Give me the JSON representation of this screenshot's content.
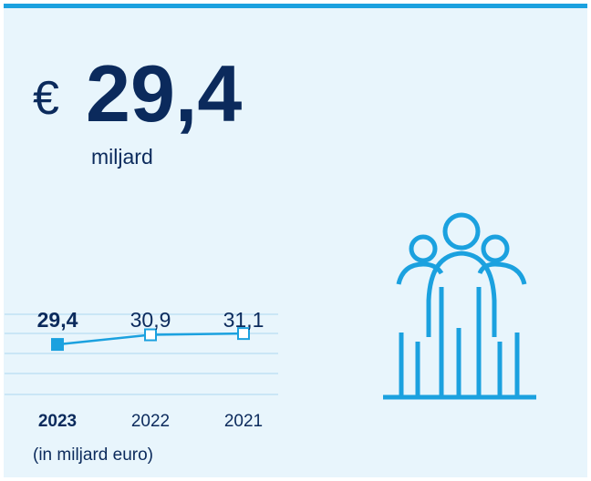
{
  "headline": {
    "currency": "€",
    "value": "29,4",
    "unit": "miljard"
  },
  "chart_data": {
    "type": "line",
    "categories": [
      "2023",
      "2022",
      "2021"
    ],
    "values": [
      29.4,
      30.9,
      31.1
    ],
    "value_labels": [
      "29,4",
      "30,9",
      "31,1"
    ],
    "ylim": [
      21.6,
      34.1
    ],
    "color": "#1ba1df",
    "ylabel": "(in miljard euro)"
  }
}
